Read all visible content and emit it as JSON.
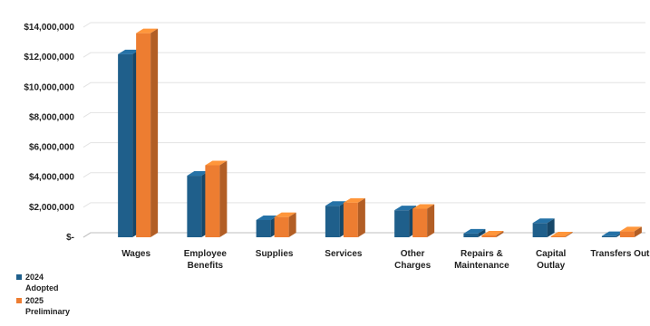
{
  "chart_data": {
    "type": "bar",
    "categories": [
      "Wages",
      "Employee\nBenefits",
      "Supplies",
      "Services",
      "Other\nCharges",
      "Repairs &\nMaintenance",
      "Capital\nOutlay",
      "Transfers Out"
    ],
    "series": [
      {
        "name": "2024\nAdopted",
        "color": "#1f5f8b",
        "values": [
          12200000,
          4100000,
          1150000,
          2100000,
          1800000,
          250000,
          950000,
          80000
        ]
      },
      {
        "name": "2025\nPreliminary",
        "color": "#ed7d31",
        "values": [
          13600000,
          4800000,
          1350000,
          2300000,
          1900000,
          120000,
          60000,
          400000
        ]
      }
    ],
    "yticks": [
      "$-",
      "$2,000,000",
      "$4,000,000",
      "$6,000,000",
      "$8,000,000",
      "$10,000,000",
      "$12,000,000",
      "$14,000,000"
    ],
    "ylim": [
      0,
      14000000
    ],
    "grid": true,
    "legend_position": "bottom-left",
    "style": "3d-clustered-column"
  }
}
